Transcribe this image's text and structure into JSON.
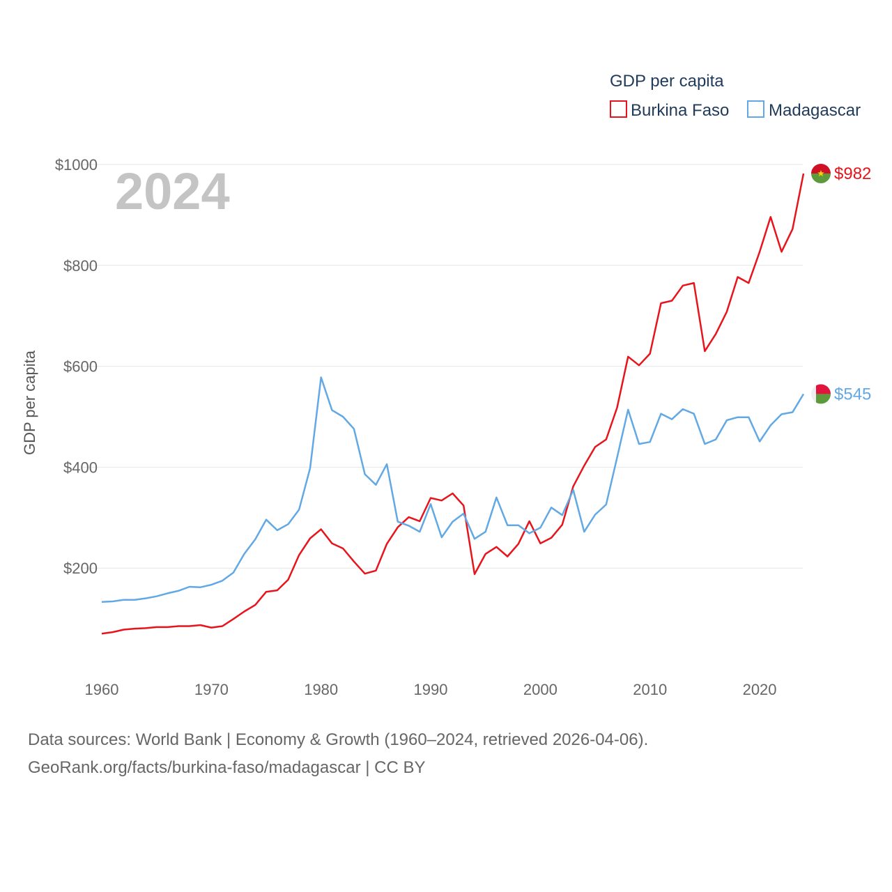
{
  "chart_data": {
    "type": "line",
    "title": "",
    "ylabel": "GDP per capita",
    "xlabel": "",
    "year_label": "2024",
    "legend_title": "GDP per capita",
    "xlim": [
      1960,
      2024
    ],
    "ylim": [
      0,
      1000
    ],
    "yticks": [
      200,
      400,
      600,
      800,
      1000
    ],
    "ytick_labels": [
      "$200",
      "$400",
      "$600",
      "$800",
      "$1000"
    ],
    "xticks": [
      1960,
      1970,
      1980,
      1990,
      2000,
      2010,
      2020
    ],
    "xtick_labels": [
      "1960",
      "1970",
      "1980",
      "1990",
      "2000",
      "2010",
      "2020"
    ],
    "x": [
      1960,
      1961,
      1962,
      1963,
      1964,
      1965,
      1966,
      1967,
      1968,
      1969,
      1970,
      1971,
      1972,
      1973,
      1974,
      1975,
      1976,
      1977,
      1978,
      1979,
      1980,
      1981,
      1982,
      1983,
      1984,
      1985,
      1986,
      1987,
      1988,
      1989,
      1990,
      1991,
      1992,
      1993,
      1994,
      1995,
      1996,
      1997,
      1998,
      1999,
      2000,
      2001,
      2002,
      2003,
      2004,
      2005,
      2006,
      2007,
      2008,
      2009,
      2010,
      2011,
      2012,
      2013,
      2014,
      2015,
      2016,
      2017,
      2018,
      2019,
      2020,
      2021,
      2022,
      2023,
      2024
    ],
    "series": [
      {
        "name": "Burkina Faso",
        "color": "#e8141c",
        "end_label": "$982",
        "values": [
          70,
          73,
          78,
          80,
          81,
          83,
          83,
          85,
          85,
          87,
          82,
          85,
          99,
          114,
          127,
          153,
          156,
          177,
          226,
          259,
          277,
          249,
          239,
          213,
          189,
          195,
          248,
          281,
          301,
          293,
          339,
          334,
          348,
          324,
          188,
          228,
          242,
          223,
          248,
          293,
          249,
          260,
          286,
          362,
          403,
          440,
          455,
          518,
          619,
          602,
          625,
          725,
          730,
          760,
          765,
          630,
          664,
          708,
          777,
          765,
          827,
          896,
          827,
          872,
          982
        ]
      },
      {
        "name": "Madagascar",
        "color": "#62a8e5",
        "end_label": "$545",
        "values": [
          133,
          134,
          137,
          137,
          140,
          144,
          150,
          155,
          163,
          162,
          167,
          175,
          191,
          228,
          257,
          296,
          275,
          287,
          316,
          398,
          578,
          513,
          500,
          476,
          386,
          365,
          406,
          292,
          284,
          272,
          327,
          261,
          292,
          308,
          258,
          272,
          340,
          285,
          285,
          269,
          280,
          320,
          305,
          355,
          272,
          306,
          326,
          419,
          514,
          446,
          450,
          506,
          495,
          515,
          506,
          446,
          455,
          493,
          499,
          499,
          451,
          483,
          505,
          509,
          545
        ]
      }
    ]
  },
  "source": {
    "line1": "Data sources: World Bank | Economy & Growth (1960–2024, retrieved 2026-04-06).",
    "line2": "GeoRank.org/facts/burkina-faso/madagascar | CC BY"
  }
}
